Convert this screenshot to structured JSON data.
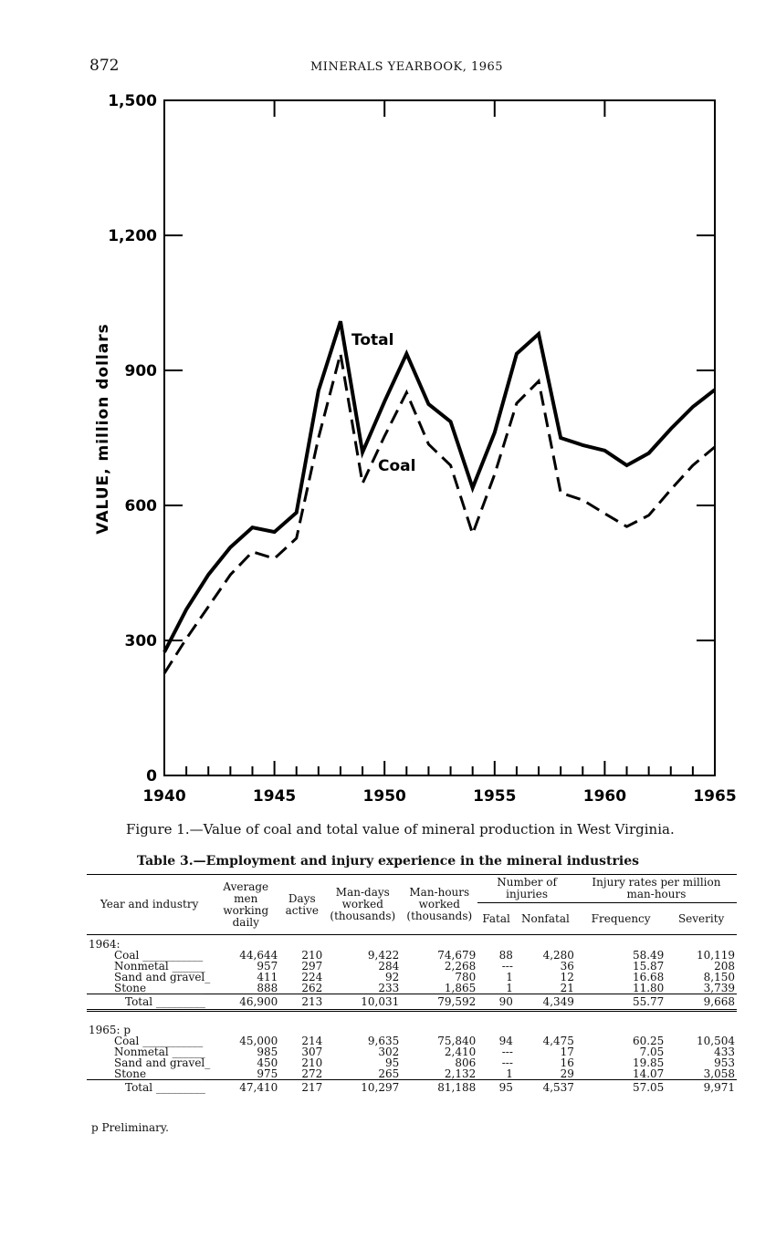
{
  "header": {
    "page_number": "872",
    "running_title": "MINERALS YEARBOOK, 1965"
  },
  "chart_data": {
    "type": "line",
    "title": "",
    "xlabel": "",
    "ylabel": "VALUE, million dollars",
    "xlim": [
      1940,
      1965
    ],
    "ylim": [
      0,
      1500
    ],
    "x_ticks": [
      "1940",
      "1945",
      "1950",
      "1955",
      "1960",
      "1965"
    ],
    "y_ticks": [
      "0",
      "300",
      "600",
      "900",
      "1,200",
      "1,500"
    ],
    "x": [
      1940,
      1941,
      1942,
      1943,
      1944,
      1945,
      1946,
      1947,
      1948,
      1949,
      1950,
      1951,
      1952,
      1953,
      1954,
      1955,
      1956,
      1957,
      1958,
      1959,
      1960,
      1961,
      1962,
      1963,
      1964,
      1965
    ],
    "series": [
      {
        "name": "Total",
        "style": "solid",
        "values": [
          274,
          369,
          446,
          507,
          551,
          541,
          584,
          855,
          1009,
          718,
          831,
          937,
          825,
          786,
          639,
          762,
          937,
          981,
          750,
          734,
          722,
          689,
          716,
          770,
          819,
          857
        ]
      },
      {
        "name": "Coal",
        "style": "dashed",
        "values": [
          227,
          304,
          375,
          446,
          497,
          482,
          527,
          750,
          937,
          649,
          754,
          851,
          736,
          689,
          537,
          669,
          827,
          876,
          628,
          612,
          582,
          553,
          578,
          635,
          689,
          730
        ]
      }
    ]
  },
  "caption": "Figure 1.—Value of coal and total value of mineral production in West Virginia.",
  "table": {
    "title": "Table 3.—Employment and injury experience in the mineral industries",
    "headers": {
      "year_industry": "Year and industry",
      "avg_men": "Average men working daily",
      "days": "Days active",
      "man_days": "Man-days worked (thousands)",
      "man_hours": "Man-hours worked (thousands)",
      "injuries": "Number of injuries",
      "fatal": "Fatal",
      "nonfatal": "Nonfatal",
      "rates": "Injury rates per million man-hours",
      "frequency": "Frequency",
      "severity": "Severity"
    },
    "groups": [
      {
        "label": "1964:",
        "rows": [
          [
            "Coal ___________",
            "44,644",
            "210",
            "9,422",
            "74,679",
            "88",
            "4,280",
            "58.49",
            "10,119"
          ],
          [
            "Nonmetal ______",
            "957",
            "297",
            "284",
            "2,268",
            "---",
            "36",
            "15.87",
            "208"
          ],
          [
            "Sand and gravel_",
            "411",
            "224",
            "92",
            "780",
            "1",
            "12",
            "16.68",
            "8,150"
          ],
          [
            "Stone __________",
            "888",
            "262",
            "233",
            "1,865",
            "1",
            "21",
            "11.80",
            "3,739"
          ]
        ],
        "total": [
          "Total _________",
          "46,900",
          "213",
          "10,031",
          "79,592",
          "90",
          "4,349",
          "55.77",
          "9,668"
        ]
      },
      {
        "label": "1965: p",
        "rows": [
          [
            "Coal ___________",
            "45,000",
            "214",
            "9,635",
            "75,840",
            "94",
            "4,475",
            "60.25",
            "10,504"
          ],
          [
            "Nonmetal ______",
            "985",
            "307",
            "302",
            "2,410",
            "---",
            "17",
            "7.05",
            "433"
          ],
          [
            "Sand and gravel_",
            "450",
            "210",
            "95",
            "806",
            "---",
            "16",
            "19.85",
            "953"
          ],
          [
            "Stone __________",
            "975",
            "272",
            "265",
            "2,132",
            "1",
            "29",
            "14.07",
            "3,058"
          ]
        ],
        "total": [
          "Total _________",
          "47,410",
          "217",
          "10,297",
          "81,188",
          "95",
          "4,537",
          "57.05",
          "9,971"
        ]
      }
    ],
    "footnote": "p Preliminary."
  }
}
